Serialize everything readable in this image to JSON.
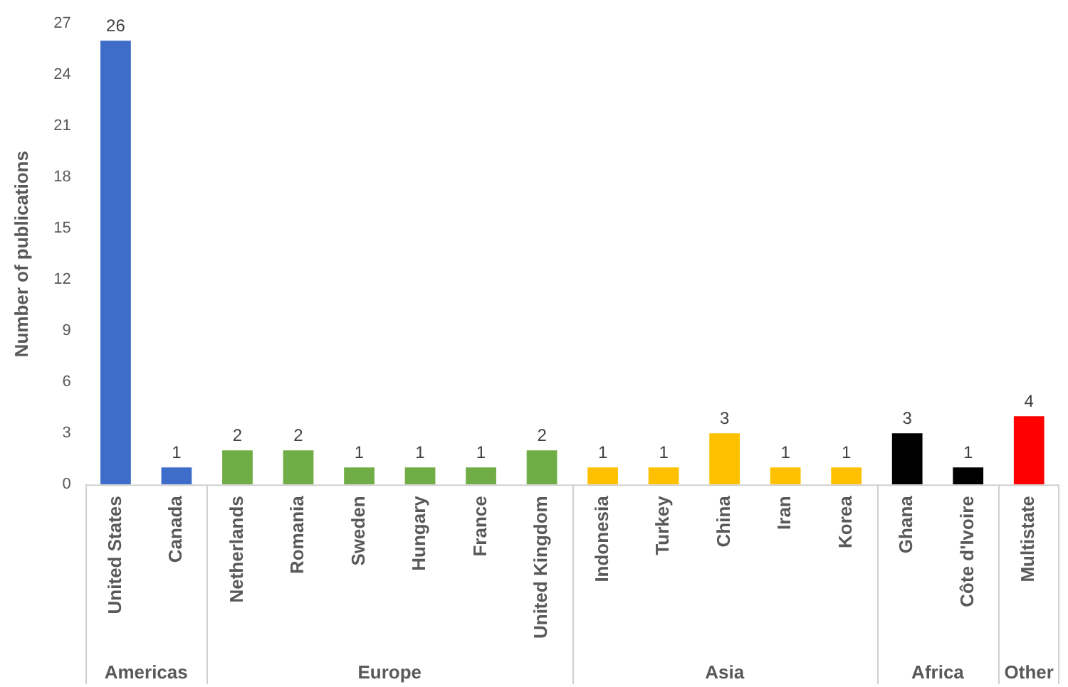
{
  "chart_data": {
    "type": "bar",
    "categories": [
      "United States",
      "Canada",
      "Netherlands",
      "Romania",
      "Sweden",
      "Hungary",
      "France",
      "United Kingdom",
      "Indonesia",
      "Turkey",
      "China",
      "Iran",
      "Korea",
      "Ghana",
      "Côte d'Ivoire",
      "Multistate"
    ],
    "values": [
      26,
      1,
      2,
      2,
      1,
      1,
      1,
      2,
      1,
      1,
      3,
      1,
      1,
      3,
      1,
      4
    ],
    "colors": [
      "#3d6cc9",
      "#3d6cc9",
      "#70ad47",
      "#70ad47",
      "#70ad47",
      "#70ad47",
      "#70ad47",
      "#70ad47",
      "#ffc000",
      "#ffc000",
      "#ffc000",
      "#ffc000",
      "#ffc000",
      "#000000",
      "#000000",
      "#ff0000"
    ],
    "ylabel": "Number of publications",
    "ylim": [
      0,
      27
    ],
    "yticks": [
      0,
      3,
      6,
      9,
      12,
      15,
      18,
      21,
      24,
      27
    ],
    "annotations": [
      "Americas",
      "Europe",
      "Asia",
      "Africa",
      "Other"
    ],
    "data_labels": true,
    "grid": false,
    "legend": false
  }
}
